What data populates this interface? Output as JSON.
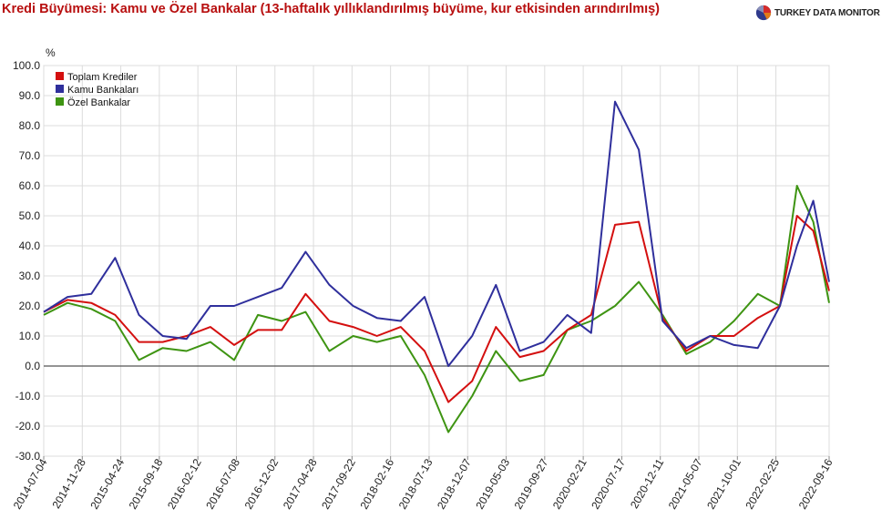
{
  "header": {
    "title": "Kredi Büyümesi: Kamu ve Özel Bankalar (13-haftalık yıllıklandırılmış büyüme, kur etkisinden arındırılmış)",
    "brand": "TURKEY DATA MONITOR",
    "brand_icon": "pie-logo-icon"
  },
  "chart_data": {
    "type": "line",
    "title": "Kredi Büyümesi: Kamu ve Özel Bankalar (13-haftalık yıllıklandırılmış büyüme, kur etkisinden arındırılmış)",
    "ylabel": "%",
    "xlabel": "",
    "ylim": [
      -30,
      100
    ],
    "yticks": [
      "100.0",
      "90.0",
      "80.0",
      "70.0",
      "60.0",
      "50.0",
      "40.0",
      "30.0",
      "20.0",
      "10.0",
      "0.0",
      "-10.0",
      "-20.0",
      "-30.0"
    ],
    "x_tick_labels": [
      "2014-07-04",
      "2014-11-28",
      "2015-04-24",
      "2015-09-18",
      "2016-02-12",
      "2016-07-08",
      "2016-12-02",
      "2017-04-28",
      "2017-09-22",
      "2018-02-16",
      "2018-07-13",
      "2018-12-07",
      "2019-05-03",
      "2019-09-27",
      "2020-02-21",
      "2020-07-17",
      "2020-12-11",
      "2021-05-07",
      "2021-10-01",
      "2022-02-25",
      "2022-09-16"
    ],
    "x_anchor_values": [
      "2014-07-04",
      "2014-11-28",
      "2015-04-24",
      "2015-09-18",
      "2016-02-12",
      "2016-07-08",
      "2016-12-02",
      "2017-04-28",
      "2017-09-22",
      "2018-02-16",
      "2018-07-13",
      "2018-12-07",
      "2019-05-03",
      "2019-09-27",
      "2020-02-21",
      "2020-07-17",
      "2020-12-11",
      "2021-05-07",
      "2021-10-01",
      "2022-02-25",
      "2022-06-10",
      "2022-09-16"
    ],
    "legend_position": "top-left",
    "grid": true,
    "zero_line": true,
    "series": [
      {
        "name": "Toplam Krediler",
        "color": "#d40f0f",
        "values": [
          18,
          22,
          21,
          17,
          8,
          8,
          10,
          13,
          7,
          12,
          12,
          24,
          15,
          13,
          10,
          13,
          5,
          -12,
          -5,
          13,
          3,
          5,
          12,
          17,
          47,
          48,
          16,
          5,
          10,
          10,
          16,
          20,
          50,
          45,
          25
        ]
      },
      {
        "name": "Kamu Bankaları",
        "color": "#2f2f9c",
        "values": [
          18,
          23,
          24,
          36,
          17,
          10,
          9,
          20,
          20,
          23,
          26,
          38,
          27,
          20,
          16,
          15,
          23,
          0,
          10,
          27,
          5,
          8,
          17,
          11,
          88,
          72,
          15,
          6,
          10,
          7,
          6,
          20,
          40,
          55,
          28
        ]
      },
      {
        "name": "Özel Bankalar",
        "color": "#3e9412",
        "values": [
          17,
          21,
          19,
          15,
          2,
          6,
          5,
          8,
          2,
          17,
          15,
          18,
          5,
          10,
          8,
          10,
          -3,
          -22,
          -10,
          5,
          -5,
          -3,
          12,
          15,
          20,
          28,
          17,
          4,
          8,
          15,
          24,
          20,
          60,
          48,
          21
        ]
      }
    ]
  }
}
